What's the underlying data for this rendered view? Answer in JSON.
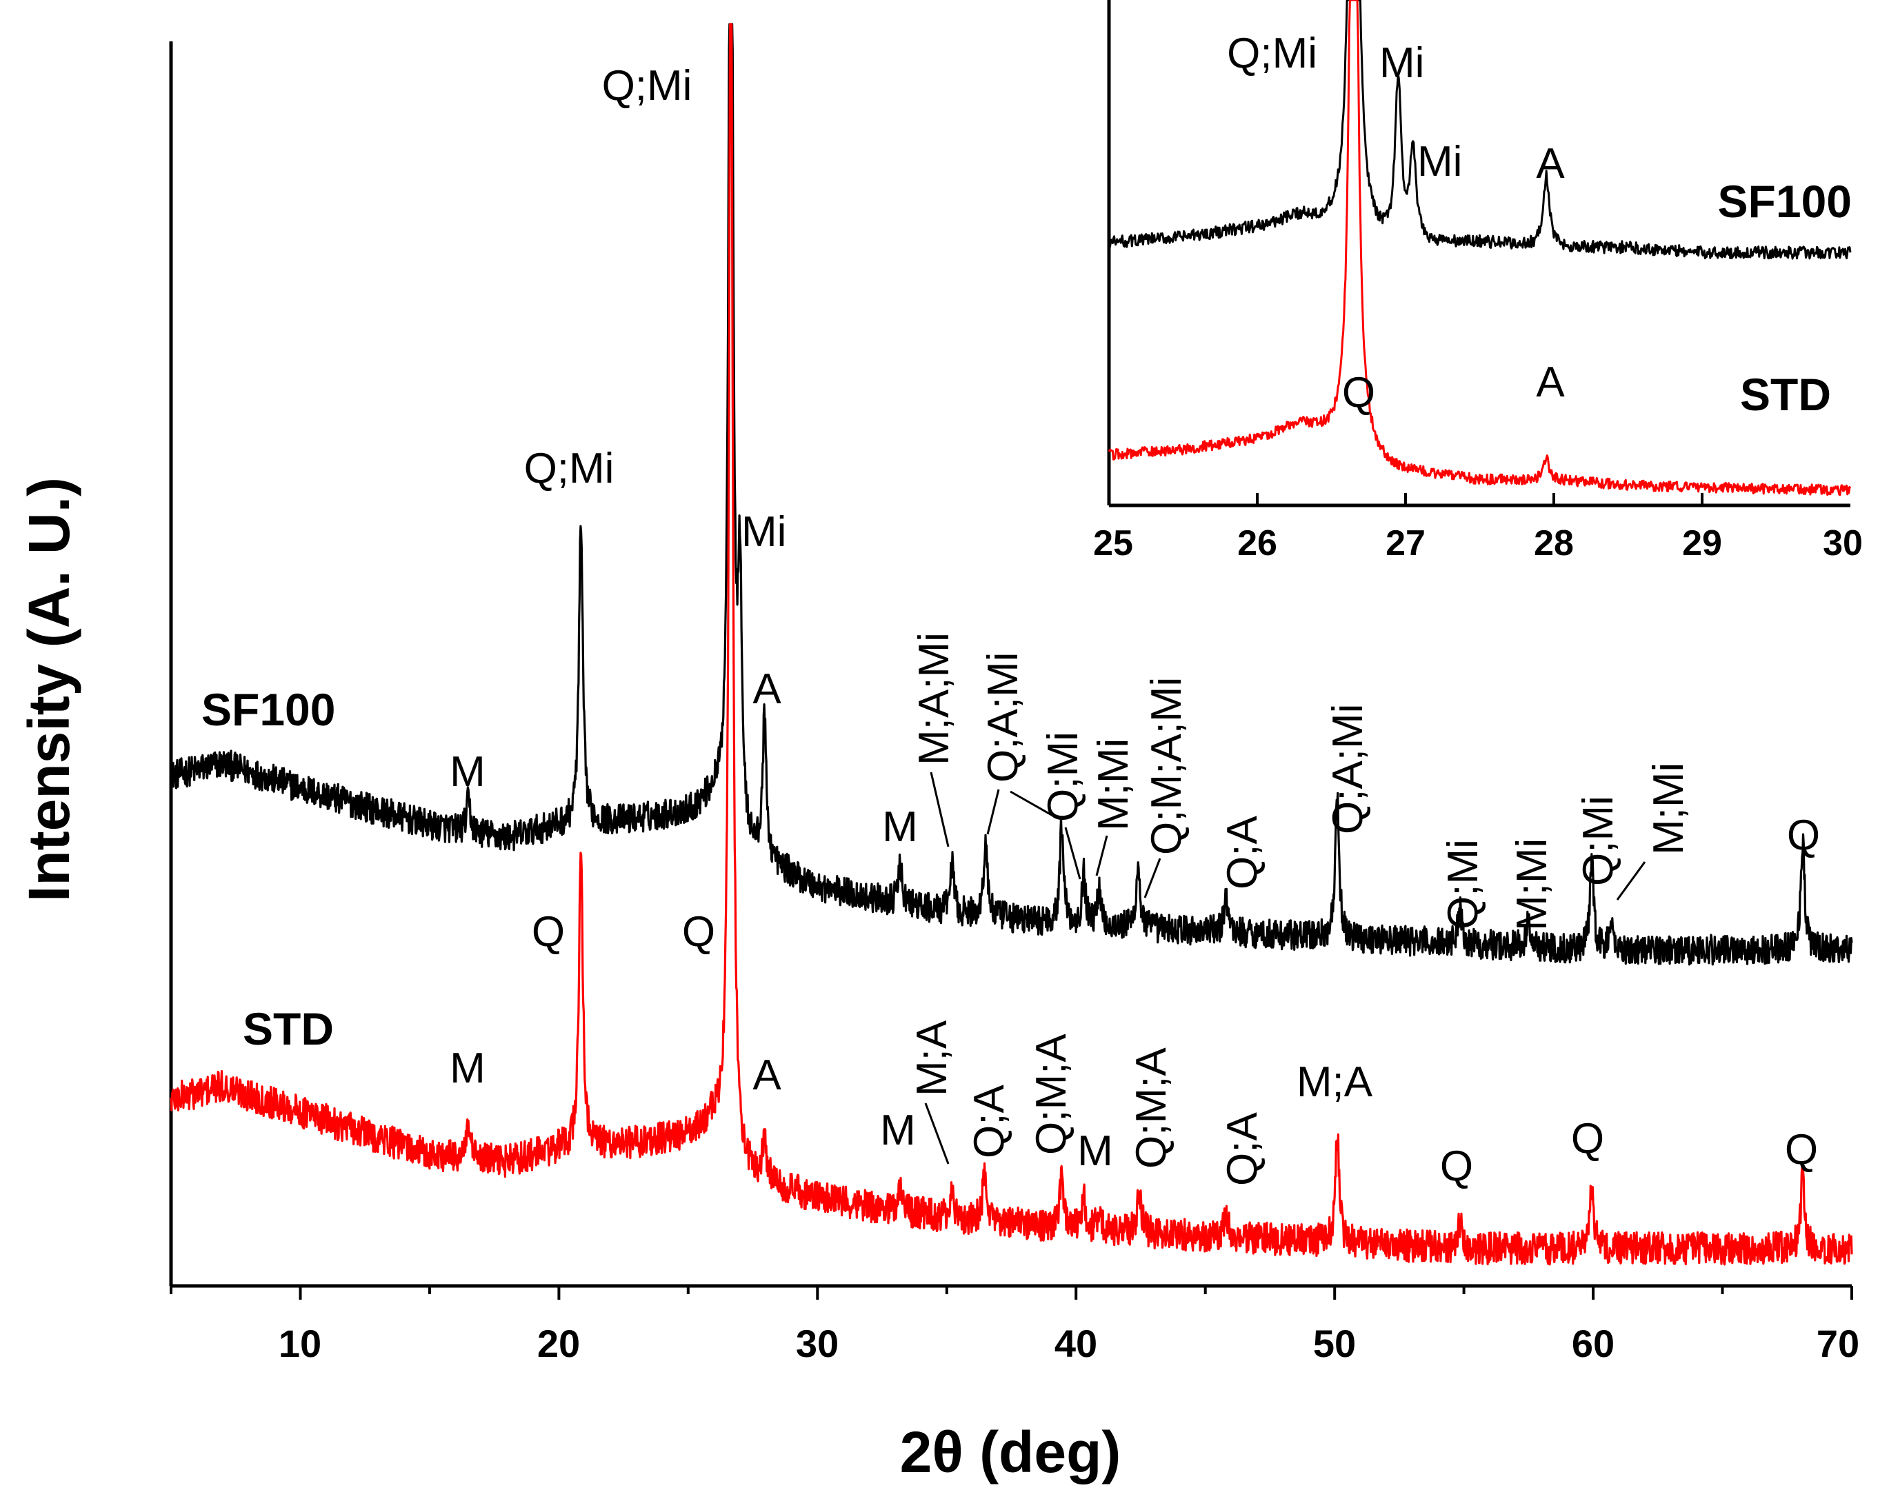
{
  "chart_data": [
    {
      "type": "line",
      "title": "",
      "xlabel": "2θ (deg)",
      "ylabel": "Intensity (A. U.)",
      "xlim": [
        5,
        70
      ],
      "ylim": [
        0,
        100
      ],
      "xticks": [
        "10",
        "20",
        "30",
        "40",
        "50",
        "60",
        "70"
      ],
      "grid": false,
      "series": [
        {
          "name": "SF100",
          "color": "#000000",
          "baseline": [
            [
              5,
              41
            ],
            [
              7,
              42
            ],
            [
              10,
              40
            ],
            [
              15,
              37
            ],
            [
              18,
              36
            ],
            [
              20,
              37
            ],
            [
              23,
              37.5
            ],
            [
              25,
              38
            ],
            [
              26,
              39
            ],
            [
              27,
              35
            ],
            [
              30,
              32
            ],
            [
              35,
              30
            ],
            [
              40,
              29
            ],
            [
              45,
              28.5
            ],
            [
              50,
              28
            ],
            [
              55,
              27.5
            ],
            [
              60,
              27
            ],
            [
              65,
              27
            ],
            [
              70,
              27
            ]
          ],
          "peaks": [
            [
              16.5,
              2.5
            ],
            [
              20.85,
              24
            ],
            [
              26.65,
              100
            ],
            [
              27.0,
              20
            ],
            [
              27.95,
              11
            ],
            [
              33.2,
              3
            ],
            [
              35.2,
              4
            ],
            [
              36.5,
              6
            ],
            [
              39.45,
              8
            ],
            [
              40.3,
              4
            ],
            [
              40.9,
              3
            ],
            [
              42.4,
              5
            ],
            [
              45.8,
              3
            ],
            [
              50.1,
              11
            ],
            [
              54.85,
              3
            ],
            [
              57.5,
              2
            ],
            [
              59.95,
              7
            ],
            [
              60.7,
              2
            ],
            [
              68.1,
              9
            ]
          ],
          "labels": [
            {
              "text": "M",
              "x": 16.5
            },
            {
              "text": "Q;Mi",
              "x": 20.85
            },
            {
              "text": "Q;Mi",
              "x": 26.65
            },
            {
              "text": "Mi",
              "x": 27.0
            },
            {
              "text": "A",
              "x": 27.95
            },
            {
              "text": "M",
              "x": 33.2
            },
            {
              "text": "M;A;Mi",
              "x": 35.2
            },
            {
              "text": "Q;A;Mi",
              "x": 36.5
            },
            {
              "text": "Q;Mi",
              "x": 39.45
            },
            {
              "text": "M;Mi",
              "x": 40.3
            },
            {
              "text": "Q;M;A;Mi",
              "x": 42.4
            },
            {
              "text": "Q;A",
              "x": 45.8
            },
            {
              "text": "Q;A;Mi",
              "x": 50.1
            },
            {
              "text": "Q;Mi",
              "x": 54.85
            },
            {
              "text": "M;Mi",
              "x": 57.5
            },
            {
              "text": "Q;Mi",
              "x": 59.95
            },
            {
              "text": "M;Mi",
              "x": 60.7
            },
            {
              "text": "Q",
              "x": 68.1
            }
          ]
        },
        {
          "name": "STD",
          "color": "#ff0000",
          "baseline": [
            [
              5,
              15
            ],
            [
              7,
              16
            ],
            [
              10,
              14
            ],
            [
              15,
              10.5
            ],
            [
              18,
              10
            ],
            [
              20,
              11
            ],
            [
              23,
              11.5
            ],
            [
              25,
              12
            ],
            [
              26,
              13
            ],
            [
              27,
              9
            ],
            [
              30,
              7
            ],
            [
              35,
              5.5
            ],
            [
              40,
              4.5
            ],
            [
              45,
              4
            ],
            [
              50,
              3.5
            ],
            [
              55,
              3
            ],
            [
              60,
              3
            ],
            [
              65,
              3
            ],
            [
              70,
              3
            ]
          ],
          "peaks": [
            [
              16.5,
              2.5
            ],
            [
              20.85,
              24
            ],
            [
              26.65,
              100
            ],
            [
              27.95,
              3.5
            ],
            [
              33.2,
              2
            ],
            [
              35.2,
              2
            ],
            [
              36.45,
              3.5
            ],
            [
              39.45,
              4.5
            ],
            [
              40.3,
              2.5
            ],
            [
              40.9,
              2
            ],
            [
              42.45,
              3.5
            ],
            [
              45.8,
              2
            ],
            [
              50.1,
              9
            ],
            [
              54.85,
              2
            ],
            [
              59.95,
              5
            ],
            [
              68.1,
              6
            ]
          ],
          "labels": [
            {
              "text": "M",
              "x": 16.5
            },
            {
              "text": "Q",
              "x": 20.85
            },
            {
              "text": "Q",
              "x": 26.65
            },
            {
              "text": "A",
              "x": 27.95
            },
            {
              "text": "M",
              "x": 33.2
            },
            {
              "text": "M;A",
              "x": 35.2
            },
            {
              "text": "Q;A",
              "x": 36.45
            },
            {
              "text": "Q;M;A",
              "x": 39.45
            },
            {
              "text": "M",
              "x": 40.9
            },
            {
              "text": "Q;M;A",
              "x": 42.45
            },
            {
              "text": "Q;A",
              "x": 45.8
            },
            {
              "text": "M;A",
              "x": 50.1
            },
            {
              "text": "Q",
              "x": 54.85
            },
            {
              "text": "Q",
              "x": 59.95
            },
            {
              "text": "Q",
              "x": 68.1
            }
          ]
        }
      ]
    },
    {
      "type": "line",
      "title": "",
      "xlabel": "",
      "ylabel": "",
      "xlim": [
        25,
        30
      ],
      "ylim": [
        0,
        100
      ],
      "xticks": [
        "25",
        "26",
        "27",
        "28",
        "29",
        "30"
      ],
      "grid": false,
      "series": [
        {
          "name": "SF100",
          "color": "#000000",
          "baseline": [
            [
              25,
              52
            ],
            [
              25.5,
              53
            ],
            [
              26,
              55
            ],
            [
              26.3,
              57
            ],
            [
              26.9,
              51
            ],
            [
              27.5,
              52
            ],
            [
              28,
              51
            ],
            [
              28.5,
              51
            ],
            [
              29,
              50
            ],
            [
              30,
              50
            ]
          ],
          "peaks": [
            [
              26.65,
              200
            ],
            [
              26.95,
              32
            ],
            [
              27.05,
              18
            ],
            [
              27.95,
              14
            ]
          ],
          "labels": [
            {
              "text": "Q;Mi",
              "x": 26.65
            },
            {
              "text": "Mi",
              "x": 26.95
            },
            {
              "text": "Mi",
              "x": 27.05
            },
            {
              "text": "A",
              "x": 27.95
            }
          ]
        },
        {
          "name": "STD",
          "color": "#ff0000",
          "baseline": [
            [
              25,
              10
            ],
            [
              25.5,
              11
            ],
            [
              26,
              13
            ],
            [
              26.3,
              16
            ],
            [
              26.9,
              7
            ],
            [
              27.5,
              5
            ],
            [
              28,
              5
            ],
            [
              28.5,
              4
            ],
            [
              29,
              3.5
            ],
            [
              30,
              3
            ]
          ],
          "peaks": [
            [
              26.65,
              200
            ],
            [
              27.95,
              4
            ]
          ],
          "labels": [
            {
              "text": "Q",
              "x": 26.65
            },
            {
              "text": "A",
              "x": 27.95
            }
          ]
        }
      ]
    }
  ]
}
